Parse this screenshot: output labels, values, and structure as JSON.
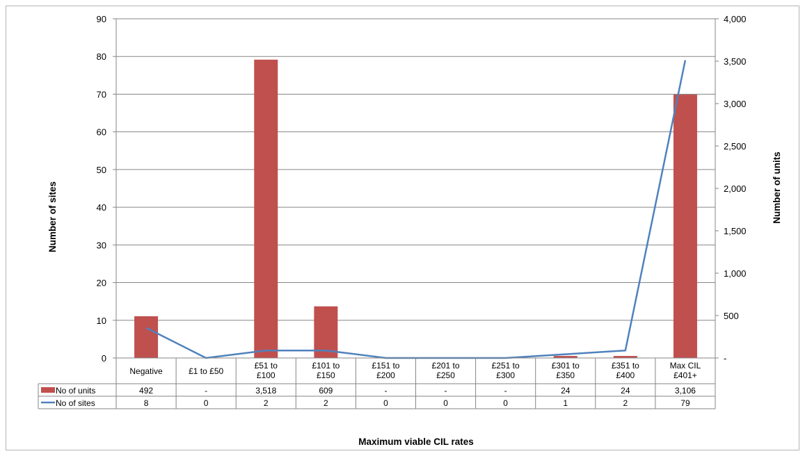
{
  "chart_data": {
    "type": "bar",
    "xlabel": "Maximum viable CIL rates",
    "ylabel_left": "Number of sites",
    "ylabel_right": "Number of units",
    "categories": [
      [
        "Negative"
      ],
      [
        "£1 to £50"
      ],
      [
        "£51 to",
        "£100"
      ],
      [
        "£101 to",
        "£150"
      ],
      [
        "£151 to",
        "£200"
      ],
      [
        "£201 to",
        "£250"
      ],
      [
        "£251 to",
        "£300"
      ],
      [
        "£301 to",
        "£350"
      ],
      [
        "£351 to",
        "£400"
      ],
      [
        "Max CIL",
        "£401+"
      ]
    ],
    "left_axis": {
      "ylim": [
        0,
        90
      ],
      "ticks": [
        "0",
        "10",
        "20",
        "30",
        "40",
        "50",
        "60",
        "70",
        "80",
        "90"
      ]
    },
    "right_axis": {
      "ylim": [
        0,
        4000
      ],
      "ticks": [
        "-",
        "500",
        "1,000",
        "1,500",
        "2,000",
        "2,500",
        "3,000",
        "3,500",
        "4,000"
      ]
    },
    "series": [
      {
        "name": "No of units",
        "type": "bar",
        "axis": "right",
        "color": "#C0504D",
        "values": [
          492,
          0,
          3518,
          609,
          0,
          0,
          0,
          24,
          24,
          3106
        ],
        "labels": [
          "492",
          "-",
          "3,518",
          "609",
          "-",
          "-",
          "-",
          "24",
          "24",
          "3,106"
        ]
      },
      {
        "name": "No of sites",
        "type": "line",
        "axis": "left",
        "color": "#4F81BD",
        "values": [
          8,
          0,
          2,
          2,
          0,
          0,
          0,
          1,
          2,
          79
        ],
        "labels": [
          "8",
          "0",
          "2",
          "2",
          "0",
          "0",
          "0",
          "1",
          "2",
          "79"
        ]
      }
    ],
    "grid": true
  }
}
